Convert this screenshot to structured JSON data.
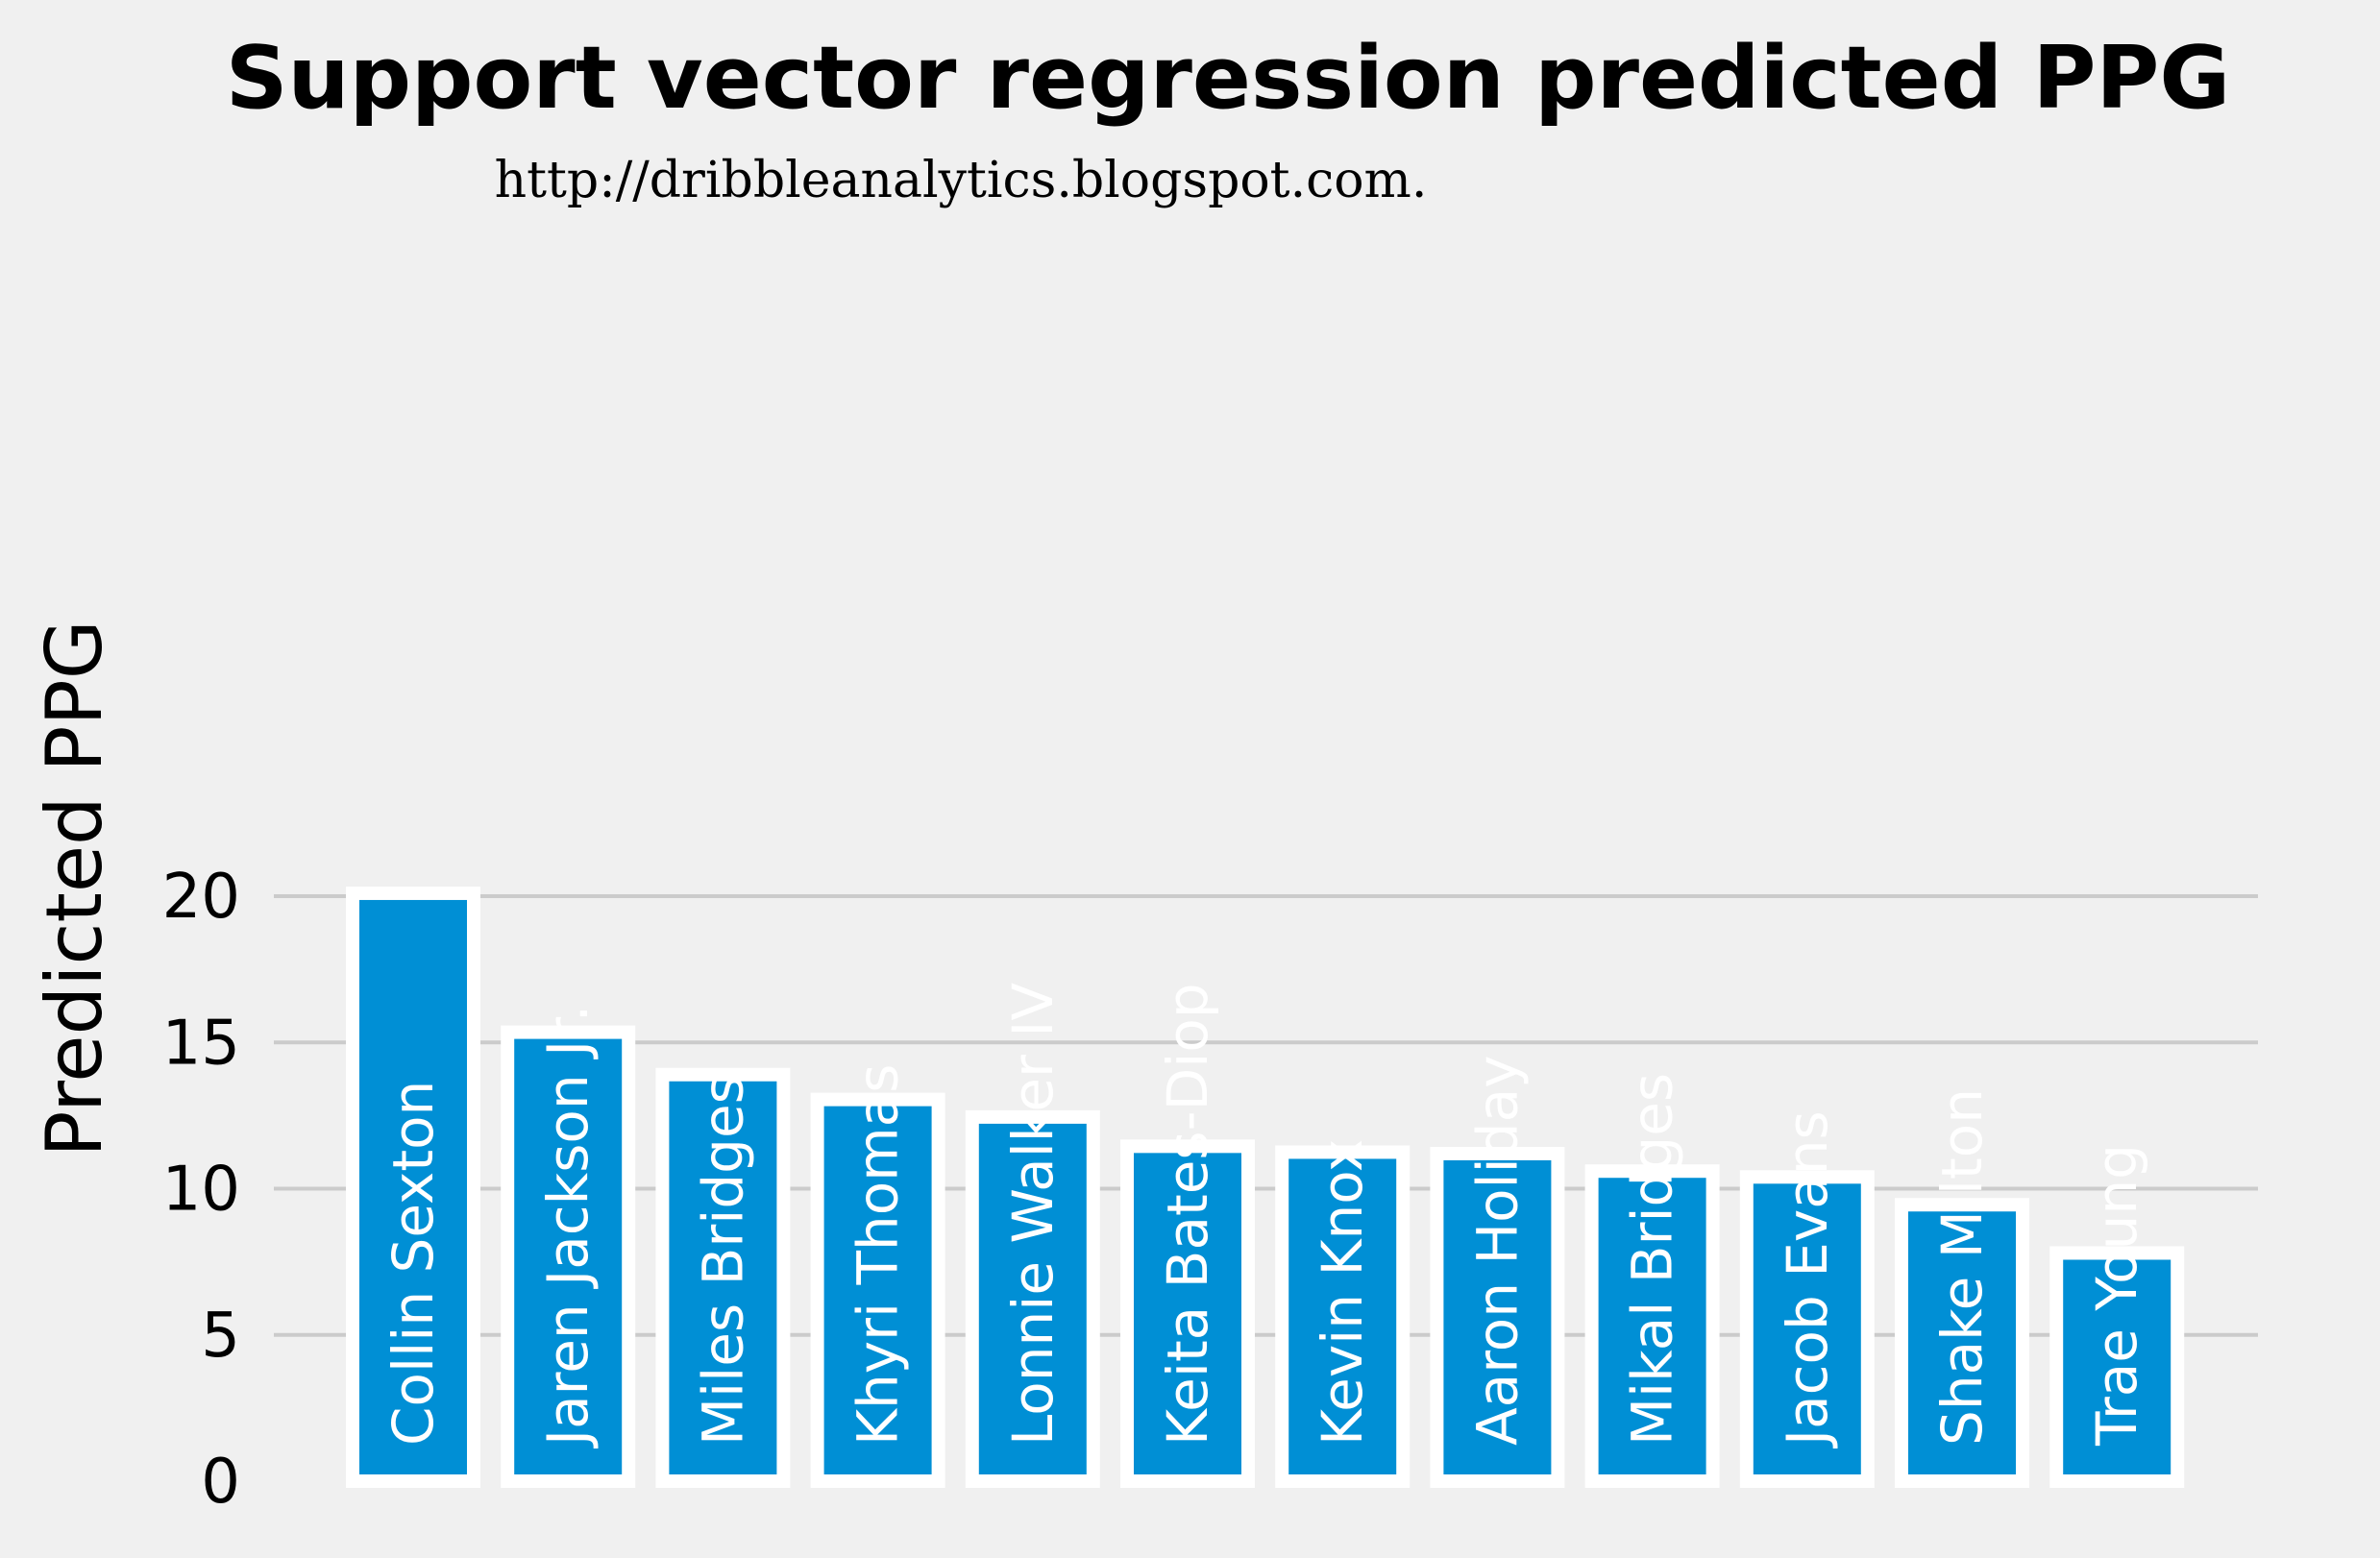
{
  "chart_data": {
    "type": "bar",
    "title": "Support vector regression predicted PPG",
    "subtitle": "http://dribbleanalytics.blogspot.com.",
    "ylabel": "Predicted PPG",
    "xlabel": "",
    "ylim": [
      0,
      21.5
    ],
    "yticks": [
      0,
      5,
      10,
      15,
      20
    ],
    "grid": true,
    "categories": [
      "Collin Sexton",
      "Jaren Jackson Jr.",
      "Miles Bridges",
      "Khyri Thomas",
      "Lonnie Walker IV",
      "Keita Bates-Diop",
      "Kevin Knox",
      "Aaron Holiday",
      "Mikal Bridges",
      "Jacob Evans",
      "Shake Milton",
      "Trae Young"
    ],
    "values": [
      20.1,
      15.35,
      13.9,
      13.05,
      12.45,
      11.45,
      11.25,
      11.2,
      10.6,
      10.4,
      9.45,
      7.8
    ],
    "bar_color": "#008fd5",
    "bar_edge_color": "#ffffff",
    "grid_color": "#cbcbcb",
    "background_color": "#f0f0f0"
  }
}
